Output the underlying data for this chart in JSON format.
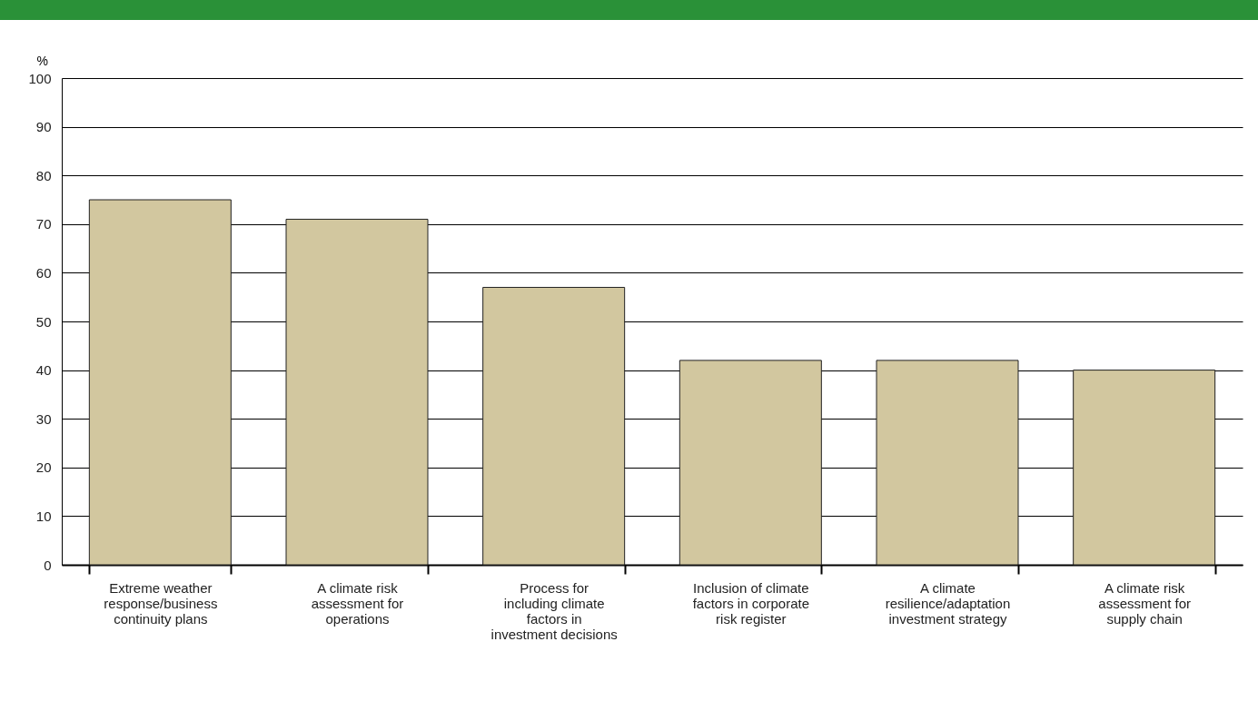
{
  "chart_data": {
    "type": "bar",
    "ylabel": "%",
    "categories": [
      "Extreme weather response/business continuity plans",
      "A climate risk assessment for operations",
      "Process for including climate factors in investment decisions",
      "Inclusion of climate factors in corporate risk register",
      "A climate resilience/adaptation investment strategy",
      "A climate risk assessment for supply chain"
    ],
    "values": [
      75,
      71,
      57,
      42,
      42,
      40
    ],
    "color": "#d2c79f",
    "ylim": [
      0,
      100
    ],
    "yticks": [
      0,
      10,
      20,
      30,
      40,
      50,
      60,
      70,
      80,
      90,
      100
    ],
    "grid": "y"
  }
}
